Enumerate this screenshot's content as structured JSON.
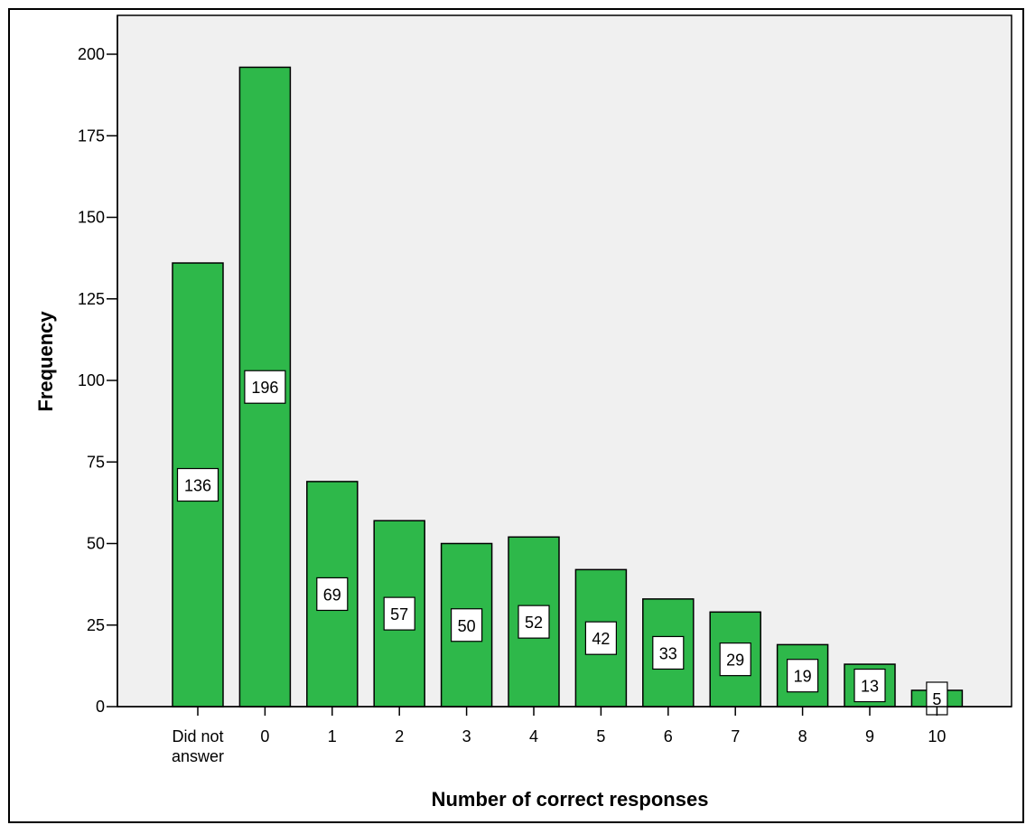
{
  "chart_data": {
    "type": "bar",
    "categories": [
      "Did not answer",
      "0",
      "1",
      "2",
      "3",
      "4",
      "5",
      "6",
      "7",
      "8",
      "9",
      "10"
    ],
    "category_lines": [
      [
        "Did not",
        "answer"
      ],
      [
        "0"
      ],
      [
        "1"
      ],
      [
        "2"
      ],
      [
        "3"
      ],
      [
        "4"
      ],
      [
        "5"
      ],
      [
        "6"
      ],
      [
        "7"
      ],
      [
        "8"
      ],
      [
        "9"
      ],
      [
        "10"
      ]
    ],
    "values": [
      136,
      196,
      69,
      57,
      50,
      52,
      42,
      33,
      29,
      19,
      13,
      5
    ],
    "data_labels": [
      "136",
      "196",
      "69",
      "57",
      "50",
      "52",
      "42",
      "33",
      "29",
      "19",
      "13",
      "5"
    ],
    "xlabel": "Number of correct responses",
    "ylabel": "Frequency",
    "ylim": [
      0,
      200
    ],
    "yticks": [
      0,
      25,
      50,
      75,
      100,
      125,
      150,
      175,
      200
    ],
    "ytick_labels": [
      "0",
      "25",
      "50",
      "75",
      "100",
      "125",
      "150",
      "175",
      "200"
    ],
    "grid": false,
    "colors": {
      "bar": "#2eb84a",
      "plot_background": "#f0f0f0",
      "label_box": "#ffffff"
    }
  }
}
